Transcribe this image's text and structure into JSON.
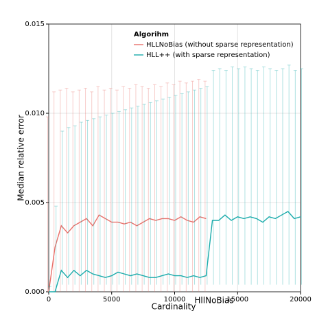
{
  "chart_data": {
    "type": "line",
    "xlabel": "Cardinality",
    "ylabel": "Median relative error",
    "annotation": "HllNoBias",
    "legend_title": "Algorihm",
    "legend": "upper center",
    "x": [
      0,
      500,
      1000,
      1500,
      2000,
      2500,
      3000,
      3500,
      4000,
      4500,
      5000,
      5500,
      6000,
      6500,
      7000,
      7500,
      8000,
      8500,
      9000,
      9500,
      10000,
      10500,
      11000,
      11500,
      12000,
      12500,
      13000,
      13500,
      14000,
      14500,
      15000,
      15500,
      16000,
      16500,
      17000,
      17500,
      18000,
      18500,
      19000,
      19500,
      20000
    ],
    "series": [
      {
        "name": "HLLNoBias (without sparse representation)",
        "color": "#e8706a",
        "values": [
          0.0,
          0.0025,
          0.0037,
          0.0033,
          0.0037,
          0.0039,
          0.0041,
          0.0037,
          0.0043,
          0.0041,
          0.0039,
          0.0039,
          0.0038,
          0.0039,
          0.0037,
          0.0039,
          0.0041,
          0.004,
          0.0041,
          0.0041,
          0.004,
          0.0042,
          0.004,
          0.0039,
          0.0042,
          0.0041,
          null,
          null,
          null,
          null,
          null,
          null,
          null,
          null,
          null,
          null,
          null,
          null,
          null,
          null,
          null
        ],
        "upper": [
          0.0098,
          0.0112,
          0.0113,
          0.0114,
          0.0112,
          0.0113,
          0.0114,
          0.0112,
          0.0115,
          0.0113,
          0.0114,
          0.0113,
          0.0115,
          0.0114,
          0.0116,
          0.0115,
          0.0114,
          0.0116,
          0.0115,
          0.0117,
          0.0116,
          0.0118,
          0.0117,
          0.0118,
          0.0119,
          0.0118,
          null,
          null,
          null,
          null,
          null,
          null,
          null,
          null,
          null,
          null,
          null,
          null,
          null,
          null,
          null
        ],
        "lower": [
          0,
          0,
          0,
          0,
          0,
          0,
          0,
          0,
          0,
          0,
          0,
          0,
          0,
          0,
          0,
          0,
          0,
          0,
          0,
          0,
          0,
          0,
          0,
          0,
          0,
          0,
          null,
          null,
          null,
          null,
          null,
          null,
          null,
          null,
          null,
          null,
          null,
          null,
          null,
          null,
          null
        ]
      },
      {
        "name": "HLL++ (with sparse representation)",
        "color": "#1aabab",
        "values": [
          0,
          0,
          0.0012,
          0.0008,
          0.0012,
          0.0009,
          0.0012,
          0.001,
          0.0009,
          0.0008,
          0.0009,
          0.0011,
          0.001,
          0.0009,
          0.001,
          0.0009,
          0.0008,
          0.0008,
          0.0009,
          0.001,
          0.0009,
          0.0009,
          0.0008,
          0.0009,
          0.0008,
          0.0009,
          0.004,
          0.004,
          0.0043,
          0.004,
          0.0042,
          0.0041,
          0.0042,
          0.0041,
          0.0039,
          0.0042,
          0.0041,
          0.0043,
          0.0045,
          0.0041,
          0.0042
        ],
        "upper": [
          0.0003,
          0.0048,
          0.009,
          0.0092,
          0.0093,
          0.0095,
          0.0096,
          0.0097,
          0.0098,
          0.0099,
          0.01,
          0.0101,
          0.0102,
          0.0103,
          0.0104,
          0.0105,
          0.0106,
          0.0107,
          0.0108,
          0.0109,
          0.011,
          0.0111,
          0.0112,
          0.0113,
          0.0114,
          0.0115,
          0.0124,
          0.0125,
          0.0124,
          0.0126,
          0.0125,
          0.0126,
          0.0125,
          0.0124,
          0.0126,
          0.0125,
          0.0124,
          0.0125,
          0.0127,
          0.0124,
          0.0125
        ],
        "lower": [
          0,
          0,
          0.0004,
          0.0004,
          0.0004,
          0.0004,
          0.0004,
          0.0004,
          0.0004,
          0.0004,
          0.0004,
          0.0004,
          0.0004,
          0.0004,
          0.0004,
          0.0004,
          0.0004,
          0.0004,
          0.0004,
          0.0004,
          0.0004,
          0.0004,
          0.0004,
          0.0004,
          0.0004,
          0.0004,
          0.0004,
          0.0004,
          0.0004,
          0.0004,
          0.0004,
          0.0004,
          0.0004,
          0.0004,
          0.0004,
          0.0004,
          0.0004,
          0.0004,
          0.0004,
          0.0004,
          0.0004
        ]
      }
    ],
    "xlim": [
      0,
      20000
    ],
    "xticks": [
      0,
      5000,
      10000,
      15000,
      20000
    ],
    "ylim": [
      0,
      0.015
    ],
    "yticks": [
      {
        "value": 0,
        "label": "0.000"
      },
      {
        "value": 0.005,
        "label": "0.005"
      },
      {
        "value": 0.01,
        "label": "0.010"
      },
      {
        "value": 0.015,
        "label": "0.015"
      }
    ],
    "grid": true
  }
}
